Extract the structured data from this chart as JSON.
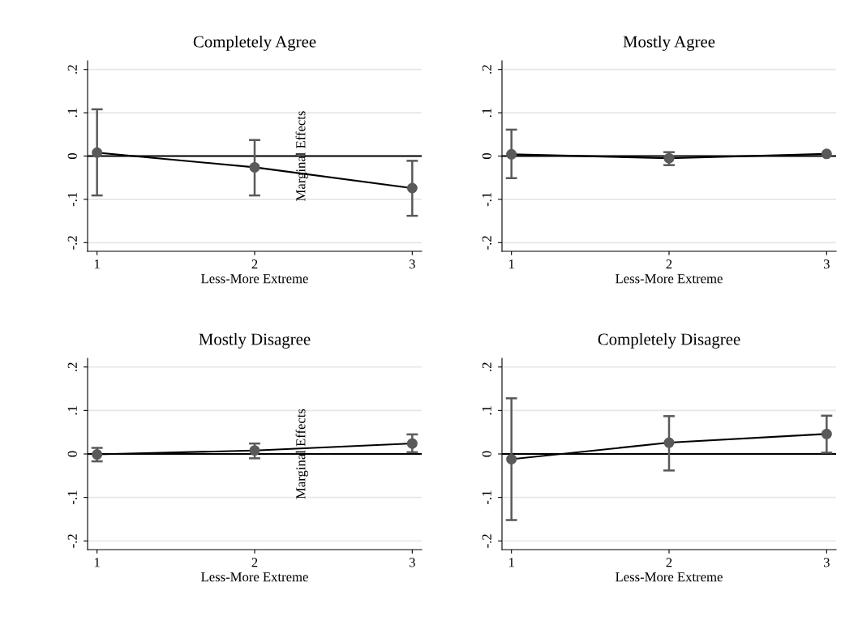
{
  "chart_data": [
    {
      "type": "line",
      "title": "Completely Agree",
      "xlabel": "Less-More Extreme",
      "ylabel": "Marginal Effects",
      "x": [
        1,
        2,
        3
      ],
      "xlim": [
        0.94,
        3.06
      ],
      "xticks": [
        1,
        2,
        3
      ],
      "ylim": [
        -0.22,
        0.22
      ],
      "yticks": [
        {
          "value": -0.2,
          "label": "-.2"
        },
        {
          "value": -0.1,
          "label": "-.1"
        },
        0,
        {
          "value": 0.1,
          "label": ".1"
        },
        {
          "value": 0.2,
          "label": ".2"
        }
      ],
      "grid": "y",
      "ref_lines": [
        {
          "axis": "y",
          "value": 0,
          "color": "#000000"
        }
      ],
      "series": [
        {
          "color": "#000000",
          "values": [
            0.008,
            -0.026,
            -0.074
          ]
        },
        {
          "type": "scatter",
          "color": "#5a5a5a",
          "marker": "circle",
          "values": [
            0.008,
            -0.026,
            -0.074
          ],
          "errors": [
            [
              -0.091,
              0.108
            ],
            [
              -0.091,
              0.037
            ],
            [
              -0.138,
              -0.011
            ]
          ]
        }
      ]
    },
    {
      "type": "line",
      "title": "Mostly Agree",
      "xlabel": "Less-More Extreme",
      "x": [
        1,
        2,
        3
      ],
      "xlim": [
        0.94,
        3.06
      ],
      "xticks": [
        1,
        2,
        3
      ],
      "ylim": [
        -0.22,
        0.22
      ],
      "yticks": [
        {
          "value": -0.2,
          "label": "-.2"
        },
        {
          "value": -0.1,
          "label": "-.1"
        },
        0,
        {
          "value": 0.1,
          "label": ".1"
        },
        {
          "value": 0.2,
          "label": ".2"
        }
      ],
      "grid": "y",
      "ref_lines": [
        {
          "axis": "y",
          "value": 0,
          "color": "#000000"
        }
      ],
      "series": [
        {
          "color": "#000000",
          "values": [
            0.004,
            -0.005,
            0.005
          ]
        },
        {
          "type": "scatter",
          "color": "#5a5a5a",
          "marker": "circle",
          "values": [
            0.004,
            -0.005,
            0.005
          ],
          "errors": [
            [
              -0.051,
              0.061
            ],
            [
              -0.021,
              0.009
            ],
            null
          ]
        }
      ]
    },
    {
      "type": "line",
      "title": "Mostly Disagree",
      "xlabel": "Less-More Extreme",
      "ylabel": "Marginal Effects",
      "x": [
        1,
        2,
        3
      ],
      "xlim": [
        0.94,
        3.06
      ],
      "xticks": [
        1,
        2,
        3
      ],
      "ylim": [
        -0.22,
        0.22
      ],
      "yticks": [
        {
          "value": -0.2,
          "label": "-.2"
        },
        {
          "value": -0.1,
          "label": "-.1"
        },
        0,
        {
          "value": 0.1,
          "label": ".1"
        },
        {
          "value": 0.2,
          "label": ".2"
        }
      ],
      "grid": "y",
      "ref_lines": [
        {
          "axis": "y",
          "value": 0,
          "color": "#000000"
        }
      ],
      "series": [
        {
          "color": "#000000",
          "values": [
            -0.001,
            0.008,
            0.024
          ]
        },
        {
          "type": "scatter",
          "color": "#5a5a5a",
          "marker": "circle",
          "values": [
            -0.001,
            0.008,
            0.024
          ],
          "errors": [
            [
              -0.017,
              0.014
            ],
            [
              -0.01,
              0.024
            ],
            [
              0.004,
              0.045
            ]
          ]
        }
      ]
    },
    {
      "type": "line",
      "title": "Completely Disagree",
      "xlabel": "Less-More Extreme",
      "x": [
        1,
        2,
        3
      ],
      "xlim": [
        0.94,
        3.06
      ],
      "xticks": [
        1,
        2,
        3
      ],
      "ylim": [
        -0.22,
        0.22
      ],
      "yticks": [
        {
          "value": -0.2,
          "label": "-.2"
        },
        {
          "value": -0.1,
          "label": "-.1"
        },
        0,
        {
          "value": 0.1,
          "label": ".1"
        },
        {
          "value": 0.2,
          "label": ".2"
        }
      ],
      "grid": "y",
      "ref_lines": [
        {
          "axis": "y",
          "value": 0,
          "color": "#000000"
        }
      ],
      "series": [
        {
          "color": "#000000",
          "values": [
            -0.012,
            0.026,
            0.046
          ]
        },
        {
          "type": "scatter",
          "color": "#5a5a5a",
          "marker": "circle",
          "values": [
            -0.012,
            0.026,
            0.046
          ],
          "errors": [
            [
              -0.152,
              0.128
            ],
            [
              -0.038,
              0.087
            ],
            [
              0.003,
              0.088
            ]
          ]
        }
      ]
    }
  ]
}
